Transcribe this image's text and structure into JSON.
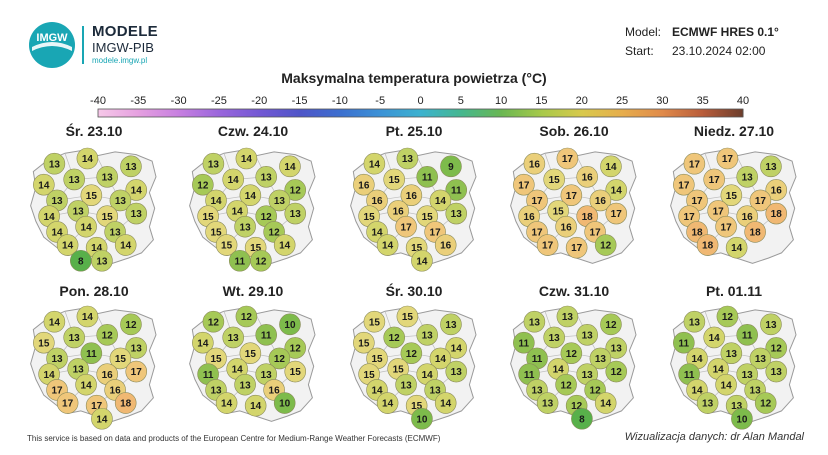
{
  "header": {
    "logo_text": "IMGW",
    "brand_title": "MODELE",
    "brand_subtitle": "IMGW-PIB",
    "brand_url": "modele.imgw.pl",
    "model_label": "Model:",
    "model_value": "ECMWF HRES 0.1°",
    "start_label": "Start:",
    "start_value": "23.10.2024 02:00"
  },
  "title": "Maksymalna temperatura powietrza (°C)",
  "colorbar": {
    "ticks": [
      "-40",
      "-35",
      "-30",
      "-25",
      "-20",
      "-15",
      "-10",
      "-5",
      "0",
      "5",
      "10",
      "15",
      "20",
      "25",
      "30",
      "35",
      "40"
    ],
    "colors": [
      "#f6c8e8",
      "#e5a0e0",
      "#c77fe0",
      "#9a66dc",
      "#7358d4",
      "#4f55c8",
      "#3c6fcf",
      "#3c92d6",
      "#3cb2cf",
      "#45b78f",
      "#6ab752",
      "#a7c94a",
      "#d8c94c",
      "#e6ad4c",
      "#e08a4a",
      "#b85c3a",
      "#6b3d2c"
    ]
  },
  "days": [
    {
      "label": "Śr. 23.10",
      "temps": [
        13,
        14,
        13,
        14,
        13,
        13,
        14,
        13,
        15,
        13,
        14,
        13,
        15,
        13,
        14,
        14,
        13,
        14,
        14,
        14,
        13,
        8
      ]
    },
    {
      "label": "Czw. 24.10",
      "temps": [
        13,
        14,
        14,
        12,
        14,
        13,
        12,
        14,
        14,
        13,
        15,
        14,
        12,
        13,
        15,
        13,
        12,
        15,
        15,
        14,
        12,
        11
      ]
    },
    {
      "label": "Pt. 25.10",
      "temps": [
        14,
        13,
        9,
        16,
        15,
        11,
        11,
        16,
        16,
        14,
        15,
        16,
        15,
        13,
        14,
        17,
        17,
        14,
        15,
        16,
        14
      ]
    },
    {
      "label": "Sob. 26.10",
      "temps": [
        16,
        17,
        14,
        17,
        15,
        16,
        14,
        17,
        17,
        16,
        16,
        15,
        18,
        17,
        17,
        16,
        17,
        17,
        17,
        12
      ]
    },
    {
      "label": "Niedz. 27.10",
      "temps": [
        17,
        17,
        13,
        17,
        17,
        13,
        16,
        17,
        15,
        17,
        17,
        17,
        16,
        18,
        18,
        17,
        18,
        18,
        14
      ]
    },
    {
      "label": "Pon. 28.10",
      "temps": [
        14,
        14,
        12,
        15,
        13,
        12,
        13,
        13,
        11,
        15,
        14,
        13,
        16,
        17,
        17,
        14,
        16,
        17,
        17,
        18,
        14
      ]
    },
    {
      "label": "Wt. 29.10",
      "temps": [
        12,
        12,
        10,
        14,
        13,
        11,
        12,
        15,
        15,
        12,
        11,
        14,
        13,
        15,
        13,
        13,
        16,
        14,
        14,
        10
      ]
    },
    {
      "label": "Śr. 30.10",
      "temps": [
        15,
        15,
        13,
        15,
        12,
        13,
        14,
        15,
        12,
        14,
        15,
        15,
        14,
        13,
        14,
        13,
        13,
        14,
        15,
        14,
        10
      ]
    },
    {
      "label": "Czw. 31.10",
      "temps": [
        13,
        13,
        12,
        11,
        13,
        13,
        13,
        11,
        12,
        13,
        11,
        14,
        13,
        12,
        13,
        12,
        12,
        13,
        12,
        14,
        8
      ]
    },
    {
      "label": "Pt. 01.11",
      "temps": [
        13,
        12,
        13,
        11,
        14,
        11,
        12,
        14,
        13,
        13,
        11,
        14,
        13,
        13,
        14,
        14,
        13,
        13,
        13,
        12,
        10
      ]
    }
  ],
  "footer": {
    "source": "This service is based on data and products of the European Centre for Medium-Range Weather Forecasts (ECMWF)",
    "credit": "Wizualizacja danych: dr Alan Mandal"
  }
}
